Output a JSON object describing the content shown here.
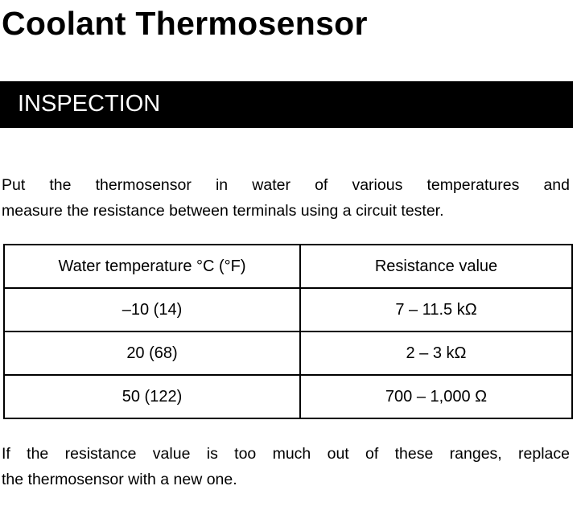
{
  "header": {
    "title": "Coolant Thermosensor"
  },
  "section": {
    "title": "INSPECTION"
  },
  "intro": {
    "lines": [
      "Put the thermosensor in water of various temperatures and",
      "measure the resistance between terminals using a circuit tester."
    ]
  },
  "table": {
    "columns": [
      "Water temperature °C (°F)",
      "Resistance value"
    ],
    "rows": [
      [
        "–10 (14)",
        "7 – 11.5 kΩ"
      ],
      [
        "20 (68)",
        "2 – 3 kΩ"
      ],
      [
        "50 (122)",
        "700 – 1,000 Ω"
      ]
    ]
  },
  "note": {
    "lines": [
      "If the resistance value is too much out of these ranges, replace",
      "the thermosensor with a new one."
    ]
  }
}
